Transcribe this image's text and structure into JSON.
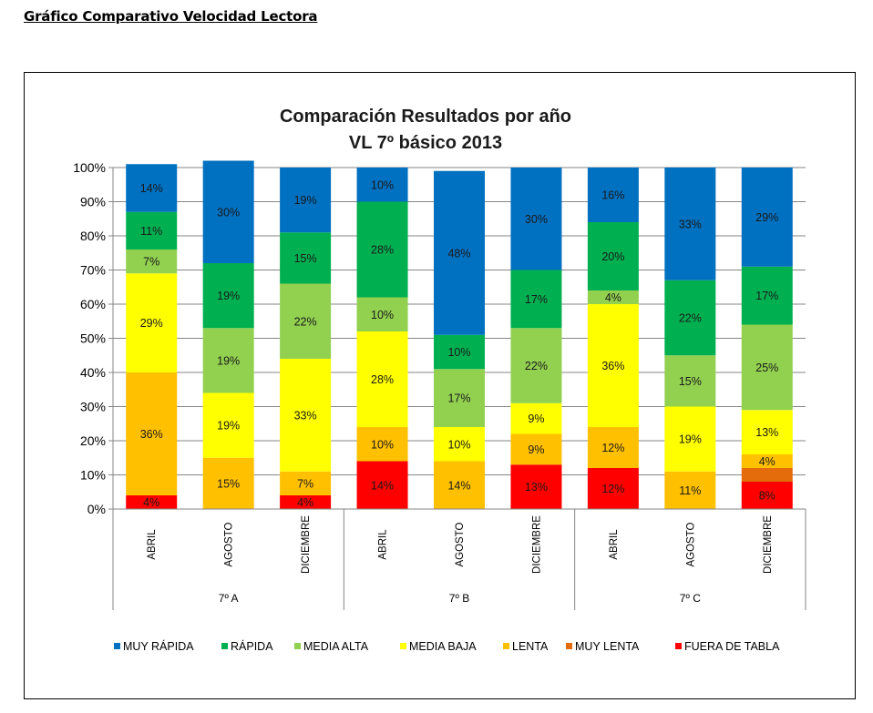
{
  "page": {
    "heading": "Gráfico Comparativo Velocidad Lectora"
  },
  "chart_data": {
    "type": "bar",
    "stacked": true,
    "percent_stacked": true,
    "title": "Comparación Resultados por año",
    "subtitle": "VL 7º básico 2013",
    "ylim": [
      0,
      100
    ],
    "yticks": [
      "0%",
      "10%",
      "20%",
      "30%",
      "40%",
      "50%",
      "60%",
      "70%",
      "80%",
      "90%",
      "100%"
    ],
    "categories": [
      "ABRIL",
      "AGOSTO",
      "DICIEMBRE",
      "ABRIL",
      "AGOSTO",
      "DICIEMBRE",
      "ABRIL",
      "AGOSTO",
      "DICIEMBRE"
    ],
    "groups": [
      {
        "label": "7º A",
        "categories": [
          "ABRIL",
          "AGOSTO",
          "DICIEMBRE"
        ]
      },
      {
        "label": "7º B",
        "categories": [
          "ABRIL",
          "AGOSTO",
          "DICIEMBRE"
        ]
      },
      {
        "label": "7º C",
        "categories": [
          "ABRIL",
          "AGOSTO",
          "DICIEMBRE"
        ]
      }
    ],
    "legend_position": "bottom",
    "series": [
      {
        "name": "FUERA DE TABLA",
        "color": "#FF0000",
        "values": [
          4,
          0,
          4,
          14,
          0,
          13,
          12,
          0,
          8
        ],
        "labels": [
          "4%",
          "",
          "4%",
          "14%",
          "",
          "13%",
          "12%",
          "",
          "8%"
        ]
      },
      {
        "name": "MUY LENTA",
        "color": "#E46C0A",
        "values": [
          0,
          0,
          0,
          0,
          0,
          0,
          0,
          0,
          4
        ],
        "labels": [
          "",
          "",
          "",
          "",
          "",
          "",
          "",
          "",
          ""
        ]
      },
      {
        "name": "LENTA",
        "color": "#FFC000",
        "values": [
          36,
          15,
          7,
          10,
          14,
          9,
          12,
          11,
          4
        ],
        "labels": [
          "36%",
          "15%",
          "7%",
          "10%",
          "14%",
          "9%",
          "12%",
          "11%",
          "4%"
        ]
      },
      {
        "name": "MEDIA BAJA",
        "color": "#FFFF00",
        "values": [
          29,
          19,
          33,
          28,
          10,
          9,
          36,
          19,
          13
        ],
        "labels": [
          "29%",
          "19%",
          "33%",
          "28%",
          "10%",
          "9%",
          "36%",
          "19%",
          "13%"
        ]
      },
      {
        "name": "MEDIA ALTA",
        "color": "#92D050",
        "values": [
          7,
          19,
          22,
          10,
          17,
          22,
          4,
          15,
          25
        ],
        "labels": [
          "7%",
          "19%",
          "22%",
          "10%",
          "17%",
          "22%",
          "4%",
          "15%",
          "25%"
        ]
      },
      {
        "name": "RÁPIDA",
        "color": "#00B050",
        "values": [
          11,
          19,
          15,
          28,
          10,
          17,
          20,
          22,
          17
        ],
        "labels": [
          "11%",
          "19%",
          "15%",
          "28%",
          "10%",
          "17%",
          "20%",
          "22%",
          "17%"
        ]
      },
      {
        "name": "MUY RÁPIDA",
        "color": "#0070C0",
        "values": [
          14,
          30,
          19,
          10,
          48,
          30,
          16,
          33,
          29
        ],
        "labels": [
          "14%",
          "30%",
          "19%",
          "10%",
          "48%",
          "30%",
          "16%",
          "33%",
          "29%"
        ]
      }
    ],
    "legend_order": [
      "MUY RÁPIDA",
      "RÁPIDA",
      "MEDIA ALTA",
      "MEDIA BAJA",
      "LENTA",
      "MUY LENTA",
      "FUERA DE TABLA"
    ]
  }
}
